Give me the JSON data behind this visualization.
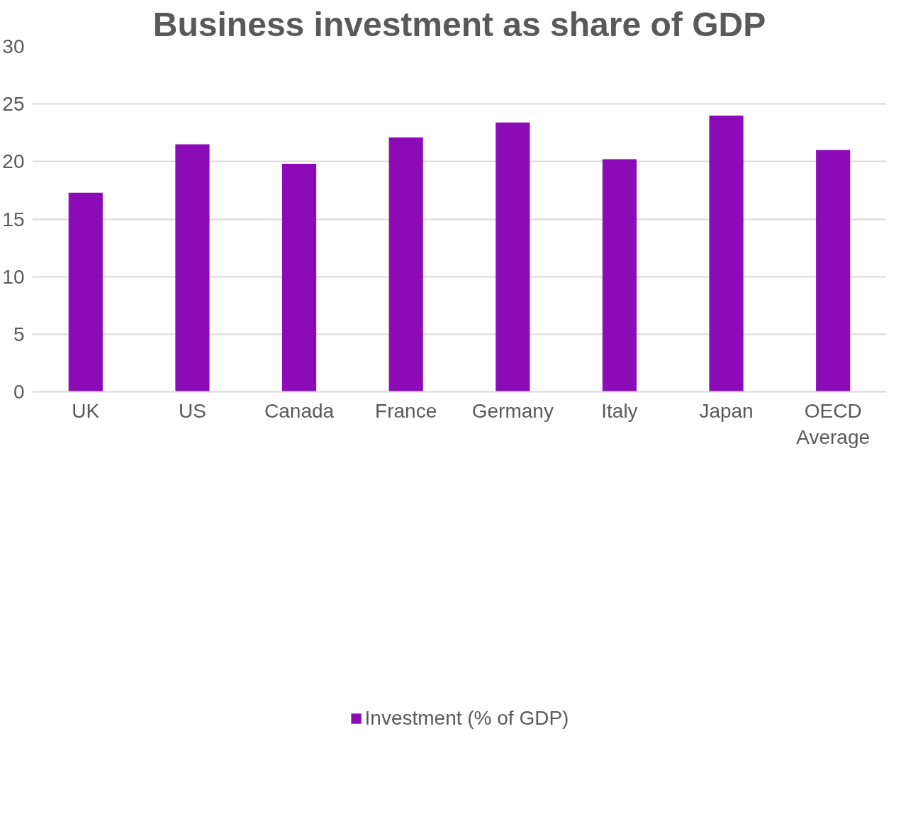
{
  "chart_data": {
    "type": "bar",
    "title": "Business investment as share of GDP",
    "categories": [
      "UK",
      "US",
      "Canada",
      "France",
      "Germany",
      "Italy",
      "Japan",
      "OECD Average"
    ],
    "series": [
      {
        "name": "Investment (% of GDP)",
        "color": "#8b0cb6",
        "values": [
          17.3,
          21.5,
          19.8,
          22.1,
          23.4,
          20.2,
          24.0,
          21.0
        ]
      }
    ],
    "ylim": [
      0,
      30
    ],
    "yticks": [
      0,
      5,
      10,
      15,
      20,
      25,
      30
    ],
    "grid": "y",
    "legend": "bottom"
  }
}
